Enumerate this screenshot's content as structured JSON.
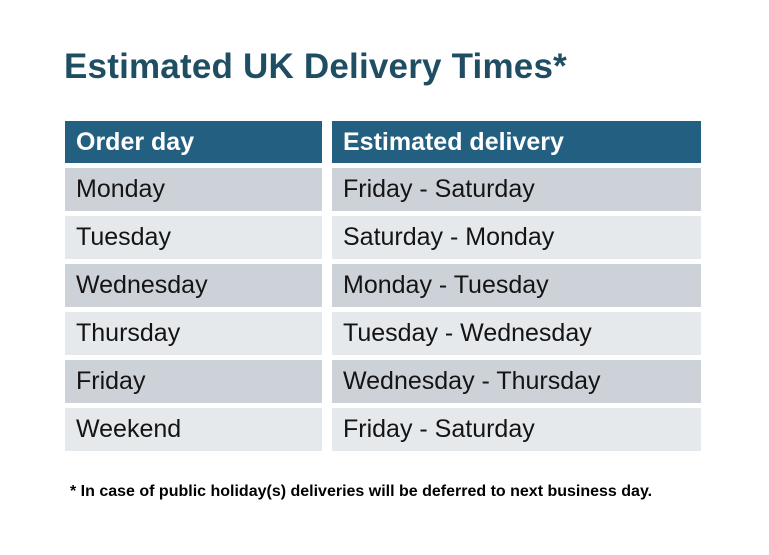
{
  "page": {
    "title": "Estimated UK Delivery Times*",
    "footnote": "* In case of public holiday(s) deliveries will be deferred to next business day."
  },
  "table": {
    "columns": [
      "Order day",
      "Estimated delivery"
    ],
    "rows": [
      {
        "order_day": "Monday",
        "estimated_delivery": "Friday - Saturday"
      },
      {
        "order_day": "Tuesday",
        "estimated_delivery": "Saturday - Monday"
      },
      {
        "order_day": "Wednesday",
        "estimated_delivery": "Monday - Tuesday"
      },
      {
        "order_day": "Thursday",
        "estimated_delivery": "Tuesday - Wednesday"
      },
      {
        "order_day": "Friday",
        "estimated_delivery": "Wednesday - Thursday"
      },
      {
        "order_day": "Weekend",
        "estimated_delivery": "Friday - Saturday"
      }
    ]
  },
  "colors": {
    "header_bg": "#235F80",
    "row_odd_bg": "#CDD2D8",
    "row_even_bg": "#E6E9EC",
    "title_color": "#1F4E63",
    "header_text": "#FFFFFF",
    "body_text": "#141414"
  }
}
